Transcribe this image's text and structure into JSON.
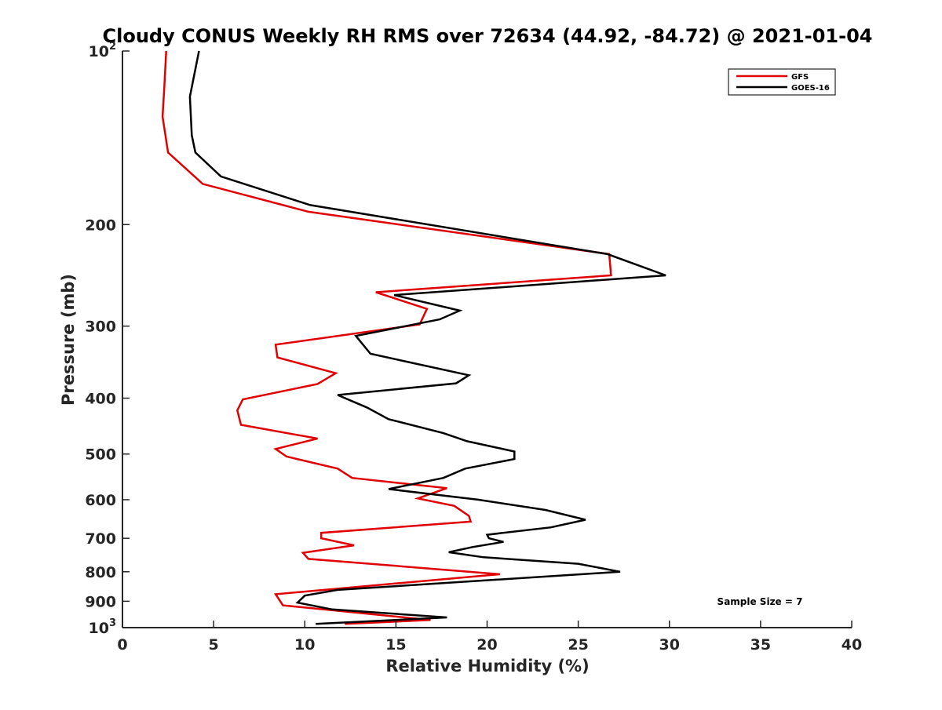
{
  "chart_data": {
    "type": "line",
    "title": "Cloudy CONUS Weekly RH RMS over 72634 (44.92, -84.72) @ 2021-01-04",
    "xlabel": "Relative Humidity (%)",
    "ylabel": "Pressure (mb)",
    "xlim": [
      0,
      40
    ],
    "ylim": [
      100,
      1000
    ],
    "yscale": "log",
    "y_inverted": true,
    "grid": false,
    "legend_position": "top-right",
    "annotation": "Sample Size = 7",
    "x_ticks": [
      "0",
      "5",
      "10",
      "15",
      "20",
      "25",
      "30",
      "35",
      "40"
    ],
    "y_ticks": [
      {
        "value": 100,
        "base": "10",
        "exp": "2"
      },
      {
        "value": 200,
        "label": "200"
      },
      {
        "value": 300,
        "label": "300"
      },
      {
        "value": 400,
        "label": "400"
      },
      {
        "value": 500,
        "label": "500"
      },
      {
        "value": 600,
        "label": "600"
      },
      {
        "value": 700,
        "label": "700"
      },
      {
        "value": 800,
        "label": "800"
      },
      {
        "value": 900,
        "label": "900"
      },
      {
        "value": 1000,
        "base": "10",
        "exp": "3"
      }
    ],
    "series": [
      {
        "name": "GFS",
        "color": "#e00000",
        "points": [
          [
            2.4,
            100
          ],
          [
            2.3,
            115
          ],
          [
            2.2,
            130
          ],
          [
            2.5,
            150
          ],
          [
            4.4,
            170
          ],
          [
            10.2,
            190
          ],
          [
            26.7,
            225
          ],
          [
            26.8,
            245
          ],
          [
            13.9,
            262
          ],
          [
            16.7,
            280
          ],
          [
            16.3,
            298
          ],
          [
            8.4,
            323
          ],
          [
            8.5,
            340
          ],
          [
            11.7,
            362
          ],
          [
            10.7,
            378
          ],
          [
            6.6,
            402
          ],
          [
            6.3,
            420
          ],
          [
            6.5,
            445
          ],
          [
            10.7,
            470
          ],
          [
            8.4,
            490
          ],
          [
            9.0,
            505
          ],
          [
            11.8,
            530
          ],
          [
            12.6,
            550
          ],
          [
            17.8,
            573
          ],
          [
            16.2,
            597
          ],
          [
            18.2,
            615
          ],
          [
            19.0,
            640
          ],
          [
            19.1,
            655
          ],
          [
            10.9,
            685
          ],
          [
            10.9,
            700
          ],
          [
            12.7,
            720
          ],
          [
            9.9,
            742
          ],
          [
            10.2,
            760
          ],
          [
            20.7,
            808
          ],
          [
            8.4,
            875
          ],
          [
            8.8,
            915
          ],
          [
            16.9,
            970
          ],
          [
            12.2,
            985
          ]
        ]
      },
      {
        "name": "GOES-16",
        "color": "#000000",
        "points": [
          [
            4.2,
            100
          ],
          [
            3.7,
            120
          ],
          [
            3.8,
            140
          ],
          [
            4.0,
            150
          ],
          [
            5.4,
            165
          ],
          [
            10.3,
            185
          ],
          [
            26.6,
            225
          ],
          [
            29.8,
            245
          ],
          [
            14.9,
            265
          ],
          [
            18.5,
            282
          ],
          [
            17.4,
            292
          ],
          [
            12.8,
            312
          ],
          [
            13.6,
            335
          ],
          [
            19.0,
            365
          ],
          [
            18.3,
            377
          ],
          [
            11.8,
            395
          ],
          [
            13.4,
            415
          ],
          [
            14.6,
            435
          ],
          [
            17.6,
            460
          ],
          [
            18.9,
            475
          ],
          [
            21.5,
            495
          ],
          [
            21.5,
            510
          ],
          [
            18.8,
            530
          ],
          [
            17.6,
            550
          ],
          [
            14.6,
            575
          ],
          [
            19.5,
            600
          ],
          [
            23.2,
            625
          ],
          [
            25.4,
            650
          ],
          [
            23.5,
            670
          ],
          [
            20.0,
            690
          ],
          [
            20.1,
            700
          ],
          [
            20.9,
            710
          ],
          [
            19.2,
            725
          ],
          [
            17.9,
            740
          ],
          [
            19.8,
            755
          ],
          [
            25.0,
            775
          ],
          [
            27.3,
            800
          ],
          [
            11.8,
            860
          ],
          [
            10.0,
            880
          ],
          [
            9.6,
            905
          ],
          [
            11.5,
            930
          ],
          [
            17.8,
            960
          ],
          [
            10.6,
            985
          ]
        ]
      }
    ]
  }
}
